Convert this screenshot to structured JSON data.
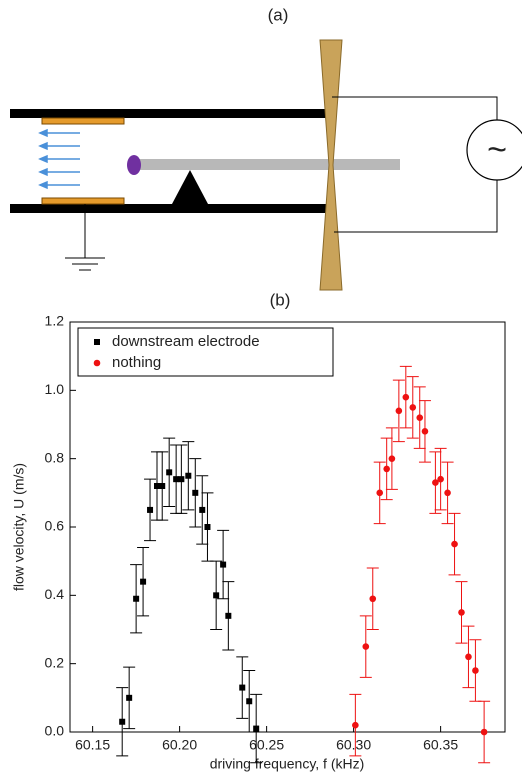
{
  "panel_a_label": "(a)",
  "source_symbol": "~",
  "chart_data": {
    "type": "scatter",
    "title": "(b)",
    "x_label": "driving frequency, f (kHz)",
    "y_label": "flow velocity, U (m/s)",
    "xlim": [
      60.137,
      60.387
    ],
    "ylim": [
      0,
      1.2
    ],
    "xticks": [
      60.15,
      {
        "value": 60.2,
        "label": "60.20"
      },
      60.25,
      {
        "value": 60.3,
        "label": "60.30"
      },
      60.35
    ],
    "yticks": [
      {
        "value": 0,
        "label": "0.0"
      },
      0.2,
      0.4,
      0.6,
      0.8,
      {
        "value": 1,
        "label": "1.0"
      },
      1.2
    ],
    "legend": "upper-left",
    "series": [
      {
        "name": "downstream electrode",
        "color": "#000000",
        "marker": "square",
        "x": [
          60.167,
          60.171,
          60.175,
          60.179,
          60.183,
          60.187,
          60.19,
          60.194,
          60.198,
          60.201,
          60.205,
          60.209,
          60.213,
          60.216,
          60.221,
          60.225,
          60.228,
          60.236,
          60.24,
          60.244
        ],
        "values": [
          0.03,
          0.1,
          0.39,
          0.44,
          0.65,
          0.72,
          0.72,
          0.76,
          0.74,
          0.74,
          0.75,
          0.7,
          0.65,
          0.6,
          0.4,
          0.49,
          0.34,
          0.13,
          0.09,
          0.01
        ],
        "errors": [
          0.1,
          0.09,
          0.1,
          0.1,
          0.09,
          0.1,
          0.1,
          0.1,
          0.1,
          0.1,
          0.1,
          0.1,
          0.1,
          0.1,
          0.1,
          0.1,
          0.1,
          0.09,
          0.09,
          0.1
        ]
      },
      {
        "name": "nothing",
        "color": "#ee1111",
        "marker": "circle",
        "x": [
          60.301,
          60.307,
          60.311,
          60.315,
          60.319,
          60.322,
          60.326,
          60.33,
          60.334,
          60.338,
          60.341,
          60.347,
          60.35,
          60.354,
          60.358,
          60.362,
          60.366,
          60.37,
          60.375
        ],
        "values": [
          0.02,
          0.25,
          0.39,
          0.7,
          0.77,
          0.8,
          0.94,
          0.98,
          0.95,
          0.92,
          0.88,
          0.73,
          0.74,
          0.7,
          0.55,
          0.35,
          0.22,
          0.18,
          0
        ],
        "errors": [
          0.09,
          0.09,
          0.09,
          0.09,
          0.09,
          0.09,
          0.09,
          0.09,
          0.09,
          0.09,
          0.09,
          0.09,
          0.09,
          0.09,
          0.09,
          0.09,
          0.09,
          0.09,
          0.09
        ]
      }
    ]
  }
}
